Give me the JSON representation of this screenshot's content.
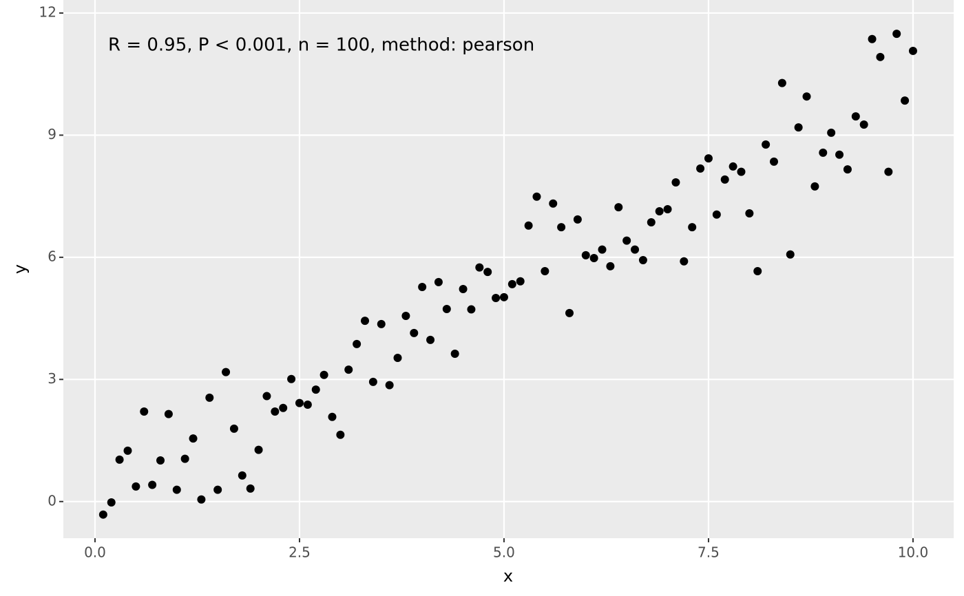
{
  "chart_data": {
    "type": "scatter",
    "annotation": "R = 0.95, P < 0.001, n = 100, method: pearson",
    "x_label": "x",
    "y_label": "y",
    "x": [
      0.1,
      0.2,
      0.3,
      0.4,
      0.5,
      0.6,
      0.7,
      0.8,
      0.9,
      1.0,
      1.1,
      1.2,
      1.3,
      1.4,
      1.5,
      1.6,
      1.7,
      1.8,
      1.9,
      2.0,
      2.1,
      2.2,
      2.3,
      2.4,
      2.5,
      2.6,
      2.7,
      2.8,
      2.9,
      3.0,
      3.1,
      3.2,
      3.3,
      3.4,
      3.5,
      3.6,
      3.7,
      3.8,
      3.9,
      4.0,
      4.1,
      4.2,
      4.3,
      4.4,
      4.5,
      4.6,
      4.7,
      4.8,
      4.9,
      5.0,
      5.1,
      5.2,
      5.3,
      5.4,
      5.5,
      5.6,
      5.7,
      5.8,
      5.9,
      6.0,
      6.1,
      6.2,
      6.3,
      6.4,
      6.5,
      6.6,
      6.7,
      6.8,
      6.9,
      7.0,
      7.1,
      7.2,
      7.3,
      7.4,
      7.5,
      7.6,
      7.7,
      7.8,
      7.9,
      8.0,
      8.1,
      8.2,
      8.3,
      8.4,
      8.5,
      8.6,
      8.7,
      8.8,
      8.9,
      9.0,
      9.1,
      9.2,
      9.3,
      9.4,
      9.5,
      9.6,
      9.7,
      9.8,
      9.9,
      10.0
    ],
    "values": [
      -0.32,
      -0.02,
      1.03,
      1.25,
      0.37,
      2.21,
      0.41,
      1.01,
      2.15,
      0.29,
      1.05,
      1.55,
      0.05,
      2.55,
      0.29,
      3.18,
      1.79,
      0.64,
      0.32,
      1.27,
      2.59,
      2.21,
      2.3,
      3.01,
      2.42,
      2.38,
      2.75,
      3.11,
      2.08,
      1.64,
      3.24,
      3.87,
      4.44,
      2.94,
      4.36,
      2.86,
      3.53,
      4.56,
      4.14,
      5.27,
      3.97,
      5.39,
      4.73,
      3.63,
      5.22,
      4.72,
      5.75,
      5.64,
      5.0,
      5.02,
      5.34,
      5.41,
      6.78,
      7.49,
      5.66,
      7.32,
      6.74,
      4.63,
      6.93,
      6.05,
      5.98,
      6.19,
      5.78,
      7.23,
      6.41,
      6.19,
      5.93,
      6.86,
      7.13,
      7.18,
      7.84,
      5.9,
      6.74,
      8.18,
      8.43,
      7.05,
      7.91,
      8.23,
      8.1,
      7.08,
      5.66,
      8.77,
      8.35,
      10.28,
      6.07,
      9.19,
      9.95,
      7.74,
      8.57,
      9.06,
      8.52,
      8.16,
      9.46,
      9.26,
      11.36,
      10.92,
      8.1,
      11.49,
      9.85,
      11.07
    ],
    "color": "#000000",
    "xlim": [
      -0.387,
      10.497
    ],
    "ylim": [
      -0.9,
      12.32
    ],
    "xticks": [
      {
        "value": 0,
        "label": "0.0"
      },
      2.5,
      {
        "value": 5,
        "label": "5.0"
      },
      7.5,
      {
        "value": 10,
        "label": "10.0"
      }
    ],
    "yticks": [
      0,
      3,
      6,
      9,
      12
    ],
    "grid": true
  }
}
